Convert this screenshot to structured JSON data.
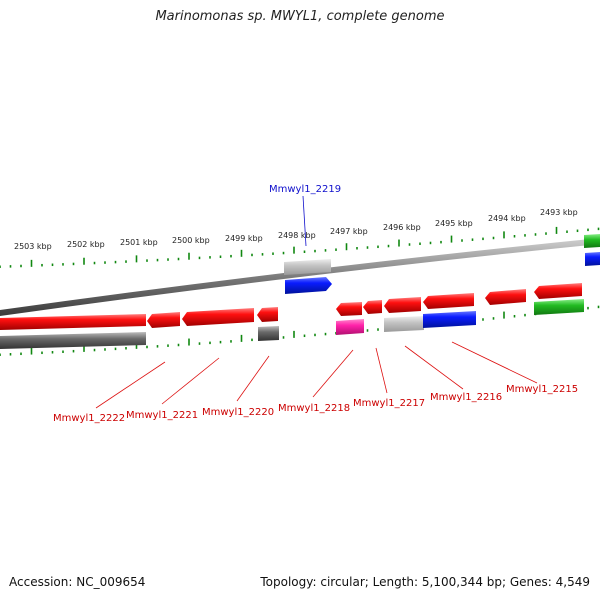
{
  "title": "Marinomonas sp. MWYL1, complete genome",
  "accession": "Accession: NC_009654",
  "summary": "Topology: circular; Length: 5,100,344 bp; Genes: 4,549",
  "scale_labels": [
    "2503 kbp",
    "2502 kbp",
    "2501 kbp",
    "2500 kbp",
    "2499 kbp",
    "2498 kbp",
    "2497 kbp",
    "2496 kbp",
    "2495 kbp",
    "2494 kbp",
    "2493 kbp"
  ],
  "gene_labels": [
    "Mmwyl1_2219",
    "Mmwyl1_2222",
    "Mmwyl1_2221",
    "Mmwyl1_2220",
    "Mmwyl1_2218",
    "Mmwyl1_2217",
    "Mmwyl1_2216",
    "Mmwyl1_2215"
  ],
  "colors": {
    "cds_forward": "#ee1111",
    "cds_reverse": "#ee1111",
    "backbone": "#888888",
    "tick": "#118811",
    "label_red": "#cc0000",
    "label_blue": "#0000cc",
    "blue_feature": "#0022ee",
    "pink_feature": "#ee2299",
    "green_feature": "#22aa22",
    "grey_feature": "#555555",
    "lightgrey_feature": "#bbbbbb"
  }
}
